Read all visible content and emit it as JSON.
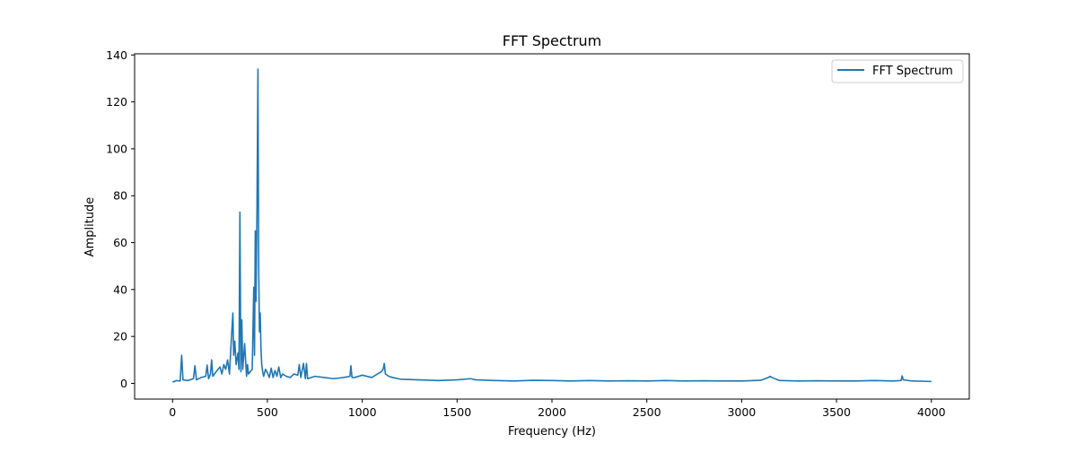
{
  "chart_data": {
    "type": "line",
    "title": "FFT Spectrum",
    "xlabel": "Frequency (Hz)",
    "ylabel": "Amplitude",
    "xlim": [
      -200,
      4200
    ],
    "ylim": [
      -6.7,
      140.5
    ],
    "xticks": [
      0,
      500,
      1000,
      1500,
      2000,
      2500,
      3000,
      3500,
      4000
    ],
    "yticks": [
      0,
      20,
      40,
      60,
      80,
      100,
      120,
      140
    ],
    "grid": false,
    "legend_position": "top-right",
    "series": [
      {
        "name": "FFT Spectrum",
        "color": "#1f77b4",
        "x": [
          0,
          20,
          40,
          48,
          55,
          80,
          110,
          118,
          126,
          150,
          175,
          182,
          190,
          200,
          206,
          212,
          230,
          250,
          260,
          270,
          280,
          290,
          300,
          310,
          318,
          322,
          328,
          335,
          345,
          350,
          355,
          360,
          365,
          370,
          380,
          390,
          395,
          400,
          410,
          420,
          428,
          432,
          436,
          440,
          445,
          450,
          454,
          458,
          462,
          466,
          470,
          475,
          480,
          490,
          500,
          510,
          520,
          530,
          540,
          550,
          560,
          570,
          580,
          600,
          620,
          640,
          660,
          668,
          676,
          690,
          700,
          706,
          712,
          750,
          800,
          850,
          900,
          935,
          940,
          946,
          960,
          1000,
          1050,
          1080,
          1100,
          1110,
          1116,
          1122,
          1140,
          1160,
          1200,
          1300,
          1400,
          1500,
          1570,
          1600,
          1700,
          1800,
          1900,
          2000,
          2100,
          2200,
          2300,
          2400,
          2500,
          2600,
          2700,
          2800,
          2900,
          3000,
          3100,
          3140,
          3150,
          3160,
          3200,
          3300,
          3400,
          3500,
          3600,
          3700,
          3800,
          3840,
          3846,
          3852,
          3900,
          4000
        ],
        "values": [
          0.5,
          1.2,
          1.0,
          12.0,
          1.5,
          1.2,
          2.0,
          7.5,
          1.5,
          2.5,
          3.0,
          7.8,
          2.0,
          4.0,
          10.0,
          3.0,
          5.0,
          7.0,
          4.0,
          8.0,
          6.0,
          10.0,
          4.0,
          19.0,
          30.0,
          12.0,
          18.0,
          8.0,
          13.0,
          6.0,
          73.0,
          5.0,
          27.0,
          6.0,
          17.0,
          3.0,
          8.0,
          4.0,
          5.0,
          6.0,
          41.0,
          12.0,
          65.0,
          35.0,
          74.0,
          134.0,
          50.0,
          22.0,
          30.0,
          15.0,
          8.0,
          5.0,
          3.0,
          6.0,
          4.5,
          2.5,
          6.5,
          2.5,
          5.5,
          3.0,
          7.0,
          2.5,
          4.0,
          3.0,
          2.5,
          4.0,
          3.5,
          8.0,
          2.5,
          8.5,
          2.0,
          8.5,
          2.0,
          3.0,
          2.5,
          2.0,
          2.5,
          3.0,
          7.5,
          2.5,
          2.5,
          3.5,
          2.5,
          4.0,
          5.0,
          6.0,
          8.5,
          4.0,
          3.0,
          2.5,
          1.8,
          1.5,
          1.2,
          1.5,
          2.0,
          1.5,
          1.2,
          1.0,
          1.3,
          1.2,
          1.0,
          1.2,
          1.0,
          1.1,
          1.0,
          1.2,
          1.0,
          1.1,
          1.0,
          1.0,
          1.3,
          2.5,
          3.0,
          2.5,
          1.2,
          1.0,
          1.1,
          1.0,
          1.0,
          1.2,
          1.0,
          1.2,
          3.2,
          1.5,
          1.0,
          0.8
        ]
      }
    ]
  }
}
